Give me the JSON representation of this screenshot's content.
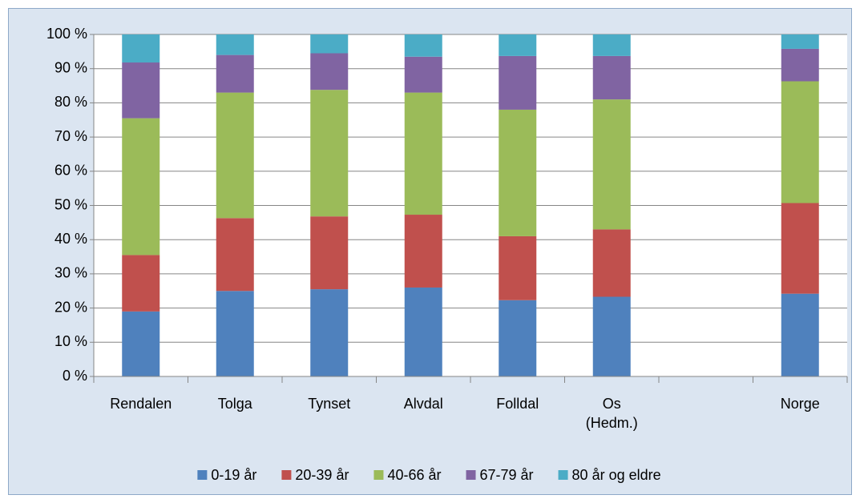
{
  "chart_data": {
    "type": "stacked_bar",
    "categories": [
      "Rendalen",
      "Tolga",
      "Tynset",
      "Alvdal",
      "Folldal",
      "Os (Hedm.)",
      null,
      "Norge"
    ],
    "series": [
      {
        "name": "0-19 år",
        "color": "#4f81bd",
        "values": [
          19,
          25,
          25.5,
          26,
          22.3,
          23.3,
          null,
          24.2
        ]
      },
      {
        "name": "20-39 år",
        "color": "#c0504d",
        "values": [
          16.5,
          21.3,
          21.3,
          21.3,
          18.7,
          19.7,
          null,
          26.5
        ]
      },
      {
        "name": "40-66 år",
        "color": "#9bbb59",
        "values": [
          40,
          36.7,
          37,
          35.7,
          37,
          38,
          null,
          35.6
        ]
      },
      {
        "name": "67-79 år",
        "color": "#8064a2",
        "values": [
          16.3,
          11,
          10.7,
          10.5,
          15.7,
          12.7,
          null,
          9.5
        ]
      },
      {
        "name": "80 år og eldre",
        "color": "#4bacc6",
        "values": [
          8.2,
          6,
          5.5,
          6.5,
          6.3,
          6.3,
          null,
          4.2
        ]
      }
    ],
    "ylim": [
      0,
      100
    ],
    "yticks": [
      {
        "value": 0,
        "label": "0 %"
      },
      {
        "value": 10,
        "label": "10 %"
      },
      {
        "value": 20,
        "label": "20 %"
      },
      {
        "value": 30,
        "label": "30 %"
      },
      {
        "value": 40,
        "label": "40 %"
      },
      {
        "value": 50,
        "label": "50 %"
      },
      {
        "value": 60,
        "label": "60 %"
      },
      {
        "value": 70,
        "label": "70 %"
      },
      {
        "value": 80,
        "label": "80 %"
      },
      {
        "value": 90,
        "label": "90 %"
      },
      {
        "value": 100,
        "label": "100 %"
      }
    ],
    "grid": true,
    "legend": "bottom"
  }
}
